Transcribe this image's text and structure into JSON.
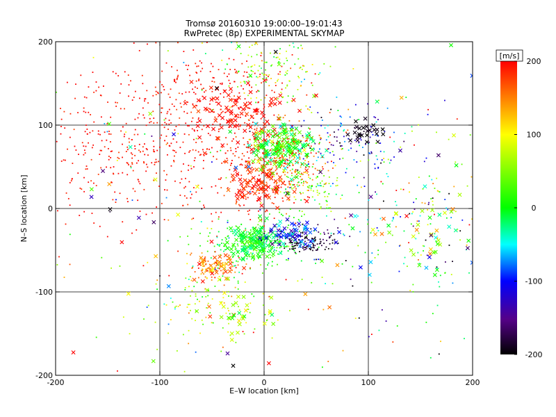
{
  "chart_data": {
    "type": "scatter",
    "title": "Tromsø 20160310 19:00:00–19:01:43",
    "subtitle": "RwPretec (8p) EXPERIMENTAL SKYMAP",
    "xlabel": "E–W location [km]",
    "ylabel": "N–S location [km]",
    "xlim": [
      -200,
      200
    ],
    "ylim": [
      -200,
      200
    ],
    "xticks": [
      "-200",
      "-100",
      "0",
      "100",
      "200"
    ],
    "yticks": [
      "-200",
      "-100",
      "0",
      "100",
      "200"
    ],
    "grid": true,
    "colorbar": {
      "label": "[m/s]",
      "min": -200,
      "max": 200,
      "ticks": [
        "200",
        "100",
        "0",
        "-100",
        "-200"
      ],
      "colormap": "black-purple-blue-cyan-green-yellow-red"
    },
    "markers": [
      "dot",
      "x"
    ],
    "clusters": [
      {
        "x": -125,
        "y": 70,
        "sx": 55,
        "sy": 45,
        "n": 420,
        "v": 195,
        "sv": 12,
        "mk": "dot"
      },
      {
        "x": -60,
        "y": 140,
        "sx": 35,
        "sy": 25,
        "n": 180,
        "v": 195,
        "sv": 10,
        "mk": "dot"
      },
      {
        "x": -25,
        "y": 115,
        "sx": 25,
        "sy": 20,
        "n": 90,
        "v": 195,
        "sv": 10,
        "mk": "x"
      },
      {
        "x": -10,
        "y": 55,
        "sx": 22,
        "sy": 35,
        "n": 230,
        "v": 190,
        "sv": 15,
        "mk": "dot"
      },
      {
        "x": -5,
        "y": 30,
        "sx": 15,
        "sy": 15,
        "n": 80,
        "v": 185,
        "sv": 15,
        "mk": "x"
      },
      {
        "x": 20,
        "y": 75,
        "sx": 15,
        "sy": 15,
        "n": 160,
        "v": 10,
        "sv": 30,
        "mk": "x"
      },
      {
        "x": 25,
        "y": 60,
        "sx": 18,
        "sy": 25,
        "n": 200,
        "v": 160,
        "sv": 30,
        "mk": "dot"
      },
      {
        "x": 45,
        "y": 25,
        "sx": 15,
        "sy": 12,
        "n": 90,
        "v": 40,
        "sv": 40,
        "mk": "dot"
      },
      {
        "x": 10,
        "y": 160,
        "sx": 25,
        "sy": 25,
        "n": 150,
        "v": 60,
        "sv": 50,
        "mk": "dot"
      },
      {
        "x": -5,
        "y": -40,
        "sx": 25,
        "sy": 15,
        "n": 260,
        "v": 5,
        "sv": 25,
        "mk": "dot"
      },
      {
        "x": -10,
        "y": -40,
        "sx": 12,
        "sy": 10,
        "n": 110,
        "v": 0,
        "sv": 20,
        "mk": "x"
      },
      {
        "x": 40,
        "y": -40,
        "sx": 15,
        "sy": 8,
        "n": 140,
        "v": -185,
        "sv": 15,
        "mk": "dot"
      },
      {
        "x": 30,
        "y": -30,
        "sx": 12,
        "sy": 8,
        "n": 50,
        "v": -90,
        "sv": 30,
        "mk": "x"
      },
      {
        "x": 75,
        "y": 80,
        "sx": 25,
        "sy": 20,
        "n": 120,
        "v": -110,
        "sv": 50,
        "mk": "dot"
      },
      {
        "x": 95,
        "y": 90,
        "sx": 10,
        "sy": 10,
        "n": 25,
        "v": -195,
        "sv": 5,
        "mk": "x"
      },
      {
        "x": -50,
        "y": -70,
        "sx": 12,
        "sy": 8,
        "n": 90,
        "v": 160,
        "sv": 25,
        "mk": "dot"
      },
      {
        "x": -45,
        "y": -68,
        "sx": 10,
        "sy": 8,
        "n": 30,
        "v": 150,
        "sv": 30,
        "mk": "x"
      },
      {
        "x": -50,
        "y": -115,
        "sx": 35,
        "sy": 25,
        "n": 110,
        "v": 60,
        "sv": 50,
        "mk": "dot"
      },
      {
        "x": -30,
        "y": -125,
        "sx": 20,
        "sy": 15,
        "n": 35,
        "v": 60,
        "sv": 50,
        "mk": "x"
      },
      {
        "x": 150,
        "y": -20,
        "sx": 45,
        "sy": 55,
        "n": 170,
        "v": 0,
        "sv": 120,
        "mk": "dot"
      },
      {
        "x": 160,
        "y": -35,
        "sx": 35,
        "sy": 25,
        "n": 50,
        "v": 20,
        "sv": 100,
        "mk": "x"
      },
      {
        "x": 0,
        "y": 0,
        "sx": 150,
        "sy": 130,
        "n": 220,
        "v": 30,
        "sv": 130,
        "mk": "dot"
      },
      {
        "x": 0,
        "y": 0,
        "sx": 150,
        "sy": 130,
        "n": 90,
        "v": 40,
        "sv": 130,
        "mk": "x"
      }
    ]
  }
}
